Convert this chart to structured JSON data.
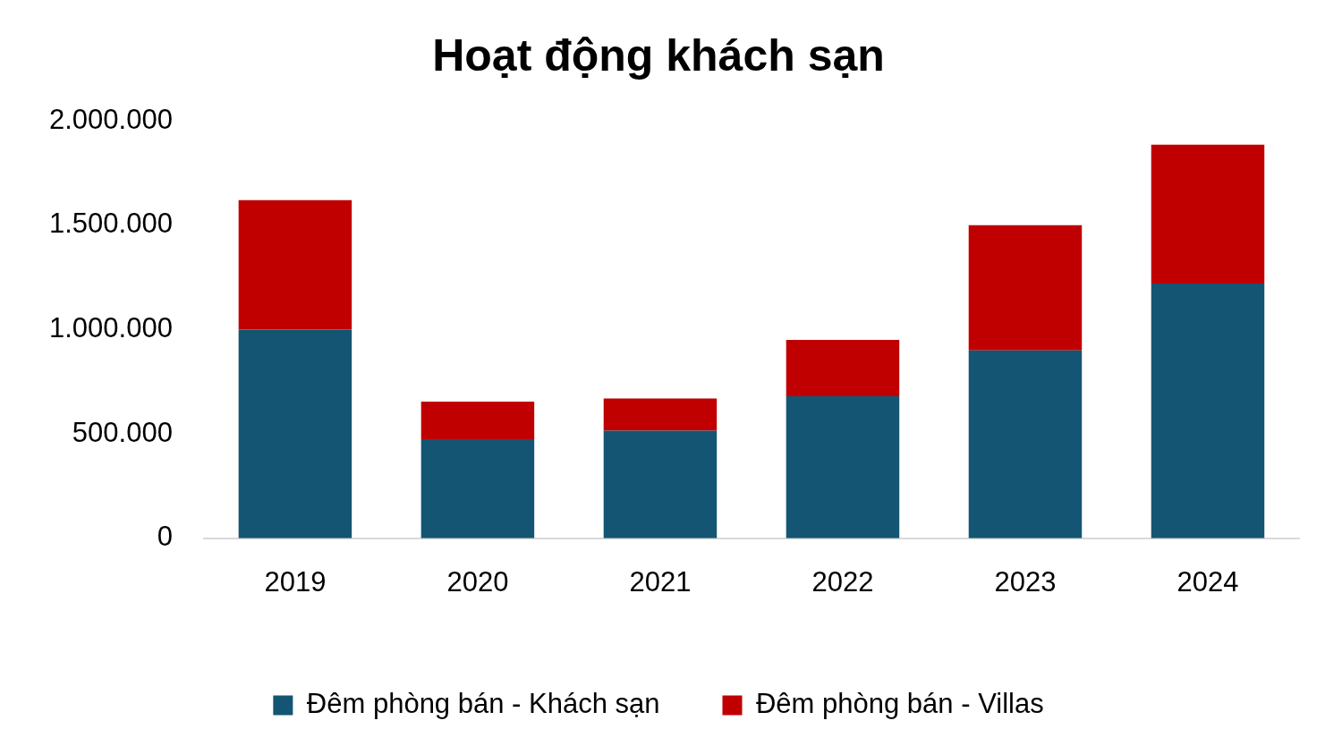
{
  "chart_data": {
    "type": "bar",
    "title": "Hoạt động khách sạn",
    "stacked": true,
    "legend": "bottom",
    "grid": false,
    "categories": [
      "2019",
      "2020",
      "2021",
      "2022",
      "2023",
      "2024"
    ],
    "series": [
      {
        "name": "Đêm phòng bán - Khách sạn",
        "color": "#135572",
        "values": [
          1000000,
          475000,
          515000,
          680000,
          900000,
          1220000
        ]
      },
      {
        "name": "Đêm phòng bán - Villas",
        "color": "#c00000",
        "values": [
          620000,
          180000,
          155000,
          270000,
          600000,
          665000
        ]
      }
    ],
    "ylim": [
      0,
      2000000
    ],
    "yticks": [
      {
        "value": 0,
        "label": "0"
      },
      {
        "value": 500000,
        "label": "500.000"
      },
      {
        "value": 1000000,
        "label": "1.000.000"
      },
      {
        "value": 1500000,
        "label": "1.500.000"
      },
      {
        "value": 2000000,
        "label": "2.000.000"
      }
    ]
  }
}
